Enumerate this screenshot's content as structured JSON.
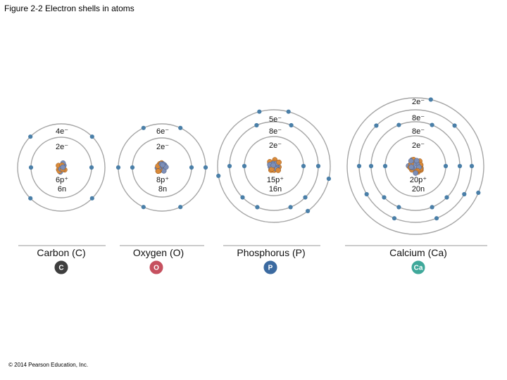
{
  "figure_title": "Figure 2-2 Electron shells in atoms",
  "copyright": "© 2014 Pearson Education, Inc.",
  "colors": {
    "shell": "#a6a6a6",
    "electron": "#4a7fa8",
    "proton": "#d98a3a",
    "neutron": "#7d8fb8",
    "carbon_badge": "#3e3e3e",
    "oxygen_badge": "#c6505f",
    "phosphorus_badge": "#3b6aa0",
    "calcium_badge": "#3fa89a",
    "divider": "#999999"
  },
  "atoms": [
    {
      "id": "carbon",
      "name": "Carbon (C)",
      "symbol": "C",
      "shell_labels": [
        "2e⁻",
        "4e⁻"
      ],
      "electrons": [
        2,
        4
      ],
      "nucleus_label": [
        "6p⁺",
        "6n"
      ]
    },
    {
      "id": "oxygen",
      "name": "Oxygen (O)",
      "symbol": "O",
      "shell_labels": [
        "2e⁻",
        "6e⁻"
      ],
      "electrons": [
        2,
        6
      ],
      "nucleus_label": [
        "8p⁺",
        "8n"
      ]
    },
    {
      "id": "phosphorus",
      "name": "Phosphorus (P)",
      "symbol": "P",
      "shell_labels": [
        "2e⁻",
        "8e⁻",
        "5e⁻"
      ],
      "electrons": [
        2,
        8,
        5
      ],
      "nucleus_label": [
        "15p⁺",
        "16n"
      ]
    },
    {
      "id": "calcium",
      "name": "Calcium (Ca)",
      "symbol": "Ca",
      "shell_labels": [
        "2e⁻",
        "8e⁻",
        "8e⁻",
        "2e⁻"
      ],
      "electrons": [
        2,
        8,
        8,
        2
      ],
      "nucleus_label": [
        "20p⁺",
        "20n"
      ]
    }
  ]
}
